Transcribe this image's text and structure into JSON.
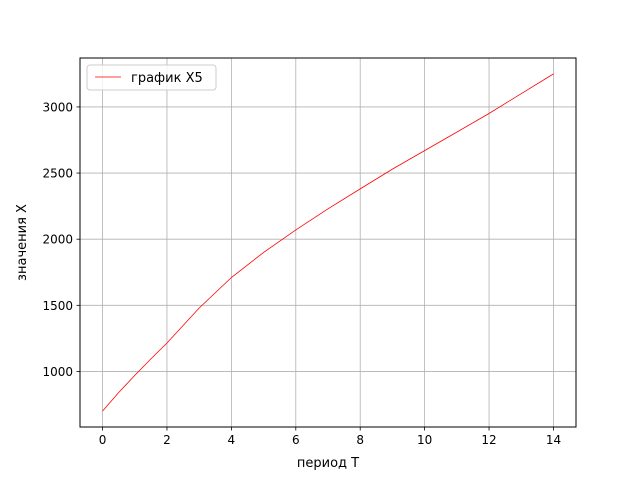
{
  "chart_data": {
    "type": "line",
    "title": "",
    "xlabel": "период T",
    "ylabel": "значения X",
    "xlim": [
      -0.7,
      14.7
    ],
    "ylim": [
      580,
      3370
    ],
    "xticks": [
      0,
      2,
      4,
      6,
      8,
      10,
      12,
      14
    ],
    "yticks": [
      1000,
      1500,
      2000,
      2500,
      3000
    ],
    "grid": true,
    "legend": {
      "position": "top-left"
    },
    "series": [
      {
        "name": "график X5",
        "color": "#ff0000",
        "x": [
          0,
          0.5,
          1,
          1.5,
          2,
          3,
          4,
          5,
          6,
          7,
          8,
          9,
          10,
          11,
          12,
          13,
          14
        ],
        "y": [
          700,
          840,
          970,
          1095,
          1215,
          1480,
          1710,
          1900,
          2070,
          2230,
          2380,
          2530,
          2670,
          2810,
          2950,
          3100,
          3250
        ]
      }
    ]
  }
}
